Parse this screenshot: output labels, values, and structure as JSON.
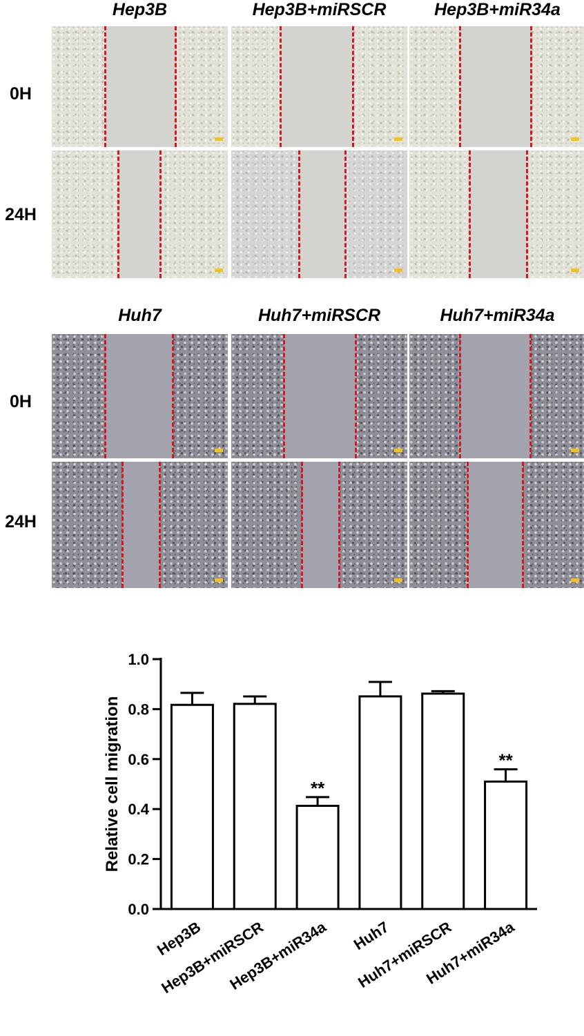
{
  "figure": {
    "panelA": {
      "columns": [
        "Hep3B",
        "Hep3B+miRSCR",
        "Hep3B+miR34a"
      ],
      "rows": [
        "0H",
        "24H"
      ]
    },
    "panelB": {
      "columns": [
        "Huh7",
        "Huh7+miRSCR",
        "Huh7+miR34a"
      ],
      "rows": [
        "0H",
        "24H"
      ]
    }
  },
  "colors": {
    "wound_edge_line": "#d8161d",
    "scale_bar": "#f2c31a",
    "bar_fill": "#ffffff",
    "bar_stroke": "#000000"
  },
  "chart_data": {
    "type": "bar",
    "categories": [
      "Hep3B",
      "Hep3B+miRSCR",
      "Hep3B+miR34a",
      "Huh7",
      "Huh7+miRSCR",
      "Huh7+miR34a"
    ],
    "values": [
      0.817,
      0.821,
      0.413,
      0.851,
      0.862,
      0.51
    ],
    "error": [
      0.048,
      0.03,
      0.035,
      0.058,
      0.01,
      0.049
    ],
    "annotations": [
      "",
      "",
      "**",
      "",
      "",
      "**"
    ],
    "ylabel": "Relative cell migration",
    "xlabel": "",
    "ylim": [
      0.0,
      1.0
    ],
    "yticks": [
      "0.0",
      "0.2",
      "0.4",
      "0.6",
      "0.8",
      "1.0"
    ],
    "grid": false,
    "legend": "none"
  }
}
